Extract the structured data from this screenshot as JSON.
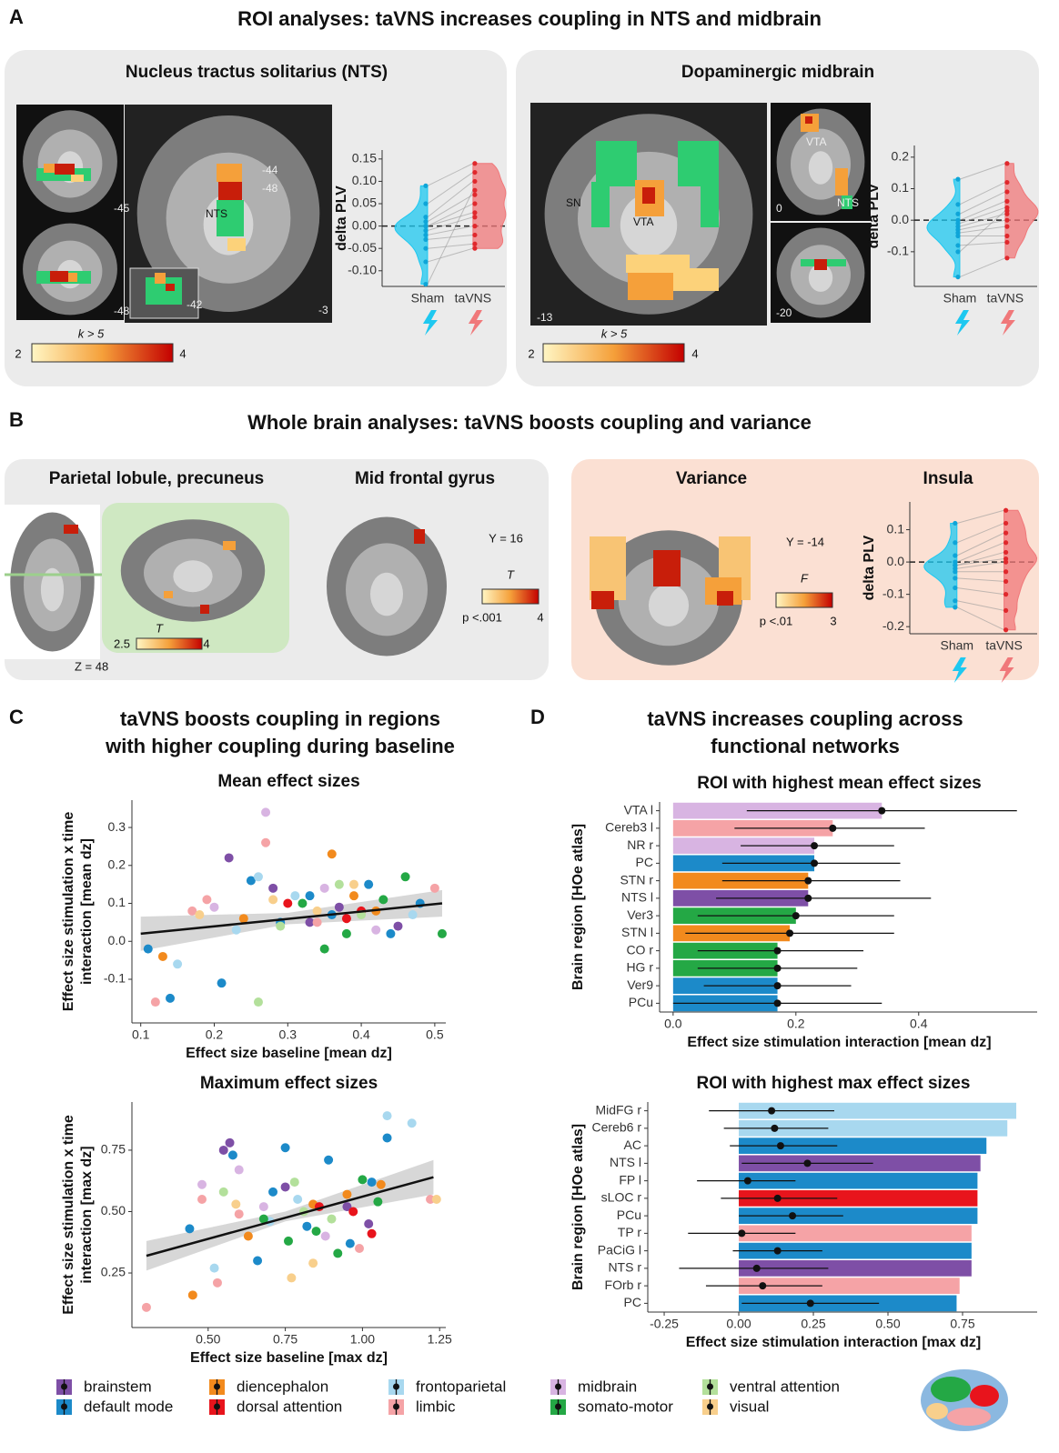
{
  "figure": {
    "A": {
      "label": "A",
      "title": "ROI analyses: taVNS increases coupling in NTS and midbrain",
      "nts": {
        "title": "Nucleus tractus solitarius (NTS)",
        "image_labels": [
          "-45",
          "-44",
          "-48",
          "NTS",
          "-48",
          "-42",
          "-3"
        ],
        "colorbar": {
          "label": "k > 5",
          "min": "2",
          "max": "4"
        }
      },
      "midbrain": {
        "title": "Dopaminergic midbrain",
        "image_labels": [
          "SN",
          "VTA",
          "-13",
          "VTA",
          "NTS",
          "0",
          "-20"
        ],
        "colorbar": {
          "label": "k > 5",
          "min": "2",
          "max": "4"
        }
      }
    },
    "B": {
      "label": "B",
      "title": "Whole brain analyses: taVNS boosts coupling and variance",
      "coupling": {
        "titles": [
          "Parietal lobule, precuneus",
          "Mid frontal gyrus"
        ],
        "image_labels": [
          "Z = 48",
          "Y = 16"
        ],
        "colorbar": {
          "label": "T",
          "min": "p <.001",
          "max": "4"
        },
        "inset_colorbar": {
          "label": "T",
          "min": "2.5",
          "max": "4"
        }
      },
      "variance": {
        "titles": [
          "Variance",
          "Insula"
        ],
        "image_labels": [
          "Y = -14"
        ],
        "colorbar": {
          "label": "F",
          "min": "p <.01",
          "max": "3"
        }
      }
    },
    "C": {
      "label": "C",
      "title": [
        "taVNS  boosts coupling in regions",
        "with higher coupling during baseline"
      ]
    },
    "D": {
      "label": "D",
      "title": [
        "taVNS increases coupling across",
        "functional networks"
      ]
    }
  },
  "chart_data": [
    {
      "type": "violin",
      "ylabel": "delta PLV",
      "categories": [
        "Sham",
        "taVNS"
      ],
      "groups": [
        {
          "color": "#1ec8f0",
          "values": [
            0.09,
            0.05,
            0.02,
            0.01,
            0.0,
            0.0,
            -0.01,
            -0.02,
            -0.03,
            -0.05,
            -0.08,
            -0.13
          ]
        },
        {
          "color": "#f0787a",
          "values": [
            0.14,
            0.12,
            0.1,
            0.07,
            0.05,
            0.03,
            0.02,
            0.0,
            -0.02,
            -0.04,
            -0.05,
            0.08
          ]
        }
      ],
      "ylim": [
        -0.135,
        0.17
      ],
      "yticks": [
        0.15,
        {
          "value": 0.1,
          "label": "0.10"
        },
        0.05,
        {
          "value": 0,
          "label": "0.00"
        },
        -0.05,
        {
          "value": -0.1,
          "label": "-0.10"
        }
      ],
      "reference_line": 0
    },
    {
      "type": "violin",
      "ylabel": "delta PLV",
      "categories": [
        "Sham",
        "taVNS"
      ],
      "groups": [
        {
          "color": "#1ec8f0",
          "values": [
            0.13,
            0.05,
            0.02,
            0.0,
            -0.01,
            -0.02,
            -0.03,
            -0.04,
            -0.05,
            -0.08,
            -0.1,
            -0.18
          ]
        },
        {
          "color": "#f0787a",
          "values": [
            0.18,
            0.12,
            0.09,
            0.06,
            0.04,
            0.02,
            0.0,
            -0.02,
            -0.05,
            -0.07,
            0.03,
            -0.12
          ]
        }
      ],
      "ylim": [
        -0.21,
        0.237
      ],
      "yticks": [
        0.2,
        0.1,
        {
          "value": 0,
          "label": "0.0"
        },
        -0.1
      ],
      "reference_line": 0
    },
    {
      "type": "violin",
      "ylabel": "delta PLV",
      "categories": [
        "Sham",
        "taVNS"
      ],
      "groups": [
        {
          "color": "#1ec8f0",
          "values": [
            0.12,
            0.06,
            0.02,
            0.0,
            -0.01,
            -0.01,
            -0.02,
            -0.03,
            -0.05,
            -0.08,
            -0.12,
            -0.14
          ]
        },
        {
          "color": "#f0787a",
          "values": [
            0.16,
            0.12,
            0.09,
            0.06,
            0.03,
            0.01,
            0.0,
            -0.03,
            -0.06,
            -0.1,
            -0.15,
            -0.21
          ]
        }
      ],
      "ylim": [
        -0.222,
        0.186
      ],
      "yticks": [
        0.1,
        {
          "value": 0,
          "label": "0.0"
        },
        -0.1,
        -0.2
      ],
      "reference_line": 0
    },
    {
      "type": "scatter",
      "panels": [
        {
          "title": "Mean effect sizes",
          "xlabel": "Effect size baseline [mean dz]",
          "ylabel": [
            "Effect size stimulation x time",
            "interaction [mean dz]"
          ],
          "xlim": [
            0.088,
            0.515
          ],
          "ylim": [
            -0.215,
            0.372
          ],
          "xticks": [
            0.1,
            0.2,
            0.3,
            0.4,
            0.5
          ],
          "yticks": [
            -0.1,
            {
              "value": 0,
              "label": "0.0"
            },
            0.1,
            0.2,
            0.3
          ],
          "fit": {
            "x": [
              0.1,
              0.51
            ],
            "values": [
              0.02,
              0.1
            ]
          },
          "band": {
            "x": [
              0.1,
              0.3,
              0.51
            ],
            "low": [
              -0.025,
              0.045,
              0.065
            ],
            "high": [
              0.065,
              0.075,
              0.135
            ]
          }
        },
        {
          "title": "Maximum effect sizes",
          "xlabel": "Effect size baseline [max dz]",
          "ylabel": [
            "Effect size stimulation x time",
            "interaction [max dz]"
          ],
          "xlim": [
            0.253,
            1.27
          ],
          "ylim": [
            0.028,
            0.946
          ],
          "xticks": [
            {
              "value": 0.5,
              "label": "0.50"
            },
            0.75,
            {
              "value": 1,
              "label": "1.00"
            },
            1.25
          ],
          "yticks": [
            0.25,
            {
              "value": 0.5,
              "label": "0.50"
            },
            0.75
          ],
          "fit": {
            "x": [
              0.3,
              1.23
            ],
            "values": [
              0.32,
              0.64
            ]
          },
          "band": {
            "x": [
              0.3,
              0.75,
              1.23
            ],
            "low": [
              0.26,
              0.46,
              0.57
            ],
            "high": [
              0.38,
              0.5,
              0.71
            ]
          }
        }
      ],
      "series": [
        {
          "name": "brainstem",
          "color": "#7e4fa6",
          "panels": [
            {
              "x": [
                0.22,
                0.28,
                0.33,
                0.37,
                0.45
              ],
              "values": [
                0.22,
                0.14,
                0.05,
                0.09,
                0.04
              ]
            },
            {
              "x": [
                0.55,
                0.57,
                0.95,
                1.02,
                0.75
              ],
              "values": [
                0.75,
                0.78,
                0.52,
                0.45,
                0.6
              ]
            }
          ]
        },
        {
          "name": "default mode",
          "color": "#1c8ac9",
          "panels": [
            {
              "x": [
                0.11,
                0.14,
                0.21,
                0.25,
                0.29,
                0.33,
                0.36,
                0.41,
                0.44,
                0.48
              ],
              "values": [
                -0.02,
                -0.15,
                -0.11,
                0.16,
                0.05,
                0.12,
                0.07,
                0.15,
                0.02,
                0.1
              ]
            },
            {
              "x": [
                0.44,
                0.58,
                0.71,
                0.75,
                0.82,
                0.89,
                0.96,
                1.03,
                1.08,
                0.66
              ],
              "values": [
                0.43,
                0.73,
                0.58,
                0.76,
                0.44,
                0.71,
                0.37,
                0.62,
                0.8,
                0.3
              ]
            }
          ]
        },
        {
          "name": "diencephalon",
          "color": "#f28a1d",
          "panels": [
            {
              "x": [
                0.13,
                0.24,
                0.36,
                0.39,
                0.42
              ],
              "values": [
                -0.04,
                0.06,
                0.23,
                0.12,
                0.08
              ]
            },
            {
              "x": [
                0.45,
                0.63,
                0.84,
                0.95,
                1.06
              ],
              "values": [
                0.16,
                0.4,
                0.53,
                0.57,
                0.61
              ]
            }
          ]
        },
        {
          "name": "dorsal attention",
          "color": "#e8141c",
          "panels": [
            {
              "x": [
                0.3,
                0.38,
                0.4
              ],
              "values": [
                0.1,
                0.06,
                0.08
              ]
            },
            {
              "x": [
                0.86,
                0.97,
                1.03
              ],
              "values": [
                0.52,
                0.5,
                0.41
              ]
            }
          ]
        },
        {
          "name": "frontoparietal",
          "color": "#a8d8ef",
          "panels": [
            {
              "x": [
                0.15,
                0.23,
                0.26,
                0.31,
                0.47
              ],
              "values": [
                -0.06,
                0.03,
                0.17,
                0.12,
                0.07
              ]
            },
            {
              "x": [
                0.52,
                0.7,
                0.79,
                1.08,
                1.16
              ],
              "values": [
                0.27,
                0.46,
                0.55,
                0.89,
                0.86
              ]
            }
          ]
        },
        {
          "name": "limbic",
          "color": "#f5a3a6",
          "panels": [
            {
              "x": [
                0.12,
                0.17,
                0.19,
                0.27,
                0.34,
                0.5
              ],
              "values": [
                -0.16,
                0.08,
                0.11,
                0.26,
                0.05,
                0.14
              ]
            },
            {
              "x": [
                0.3,
                0.48,
                0.53,
                0.6,
                0.99,
                1.22
              ],
              "values": [
                0.11,
                0.55,
                0.21,
                0.49,
                0.35,
                0.55
              ]
            }
          ]
        },
        {
          "name": "midbrain",
          "color": "#d8b4e2",
          "panels": [
            {
              "x": [
                0.2,
                0.27,
                0.35,
                0.42
              ],
              "values": [
                0.09,
                0.34,
                0.14,
                0.03
              ]
            },
            {
              "x": [
                0.48,
                0.6,
                0.68,
                0.88
              ],
              "values": [
                0.61,
                0.67,
                0.52,
                0.4
              ]
            }
          ]
        },
        {
          "name": "somato-motor",
          "color": "#24a845",
          "panels": [
            {
              "x": [
                0.32,
                0.35,
                0.38,
                0.43,
                0.46,
                0.51
              ],
              "values": [
                0.1,
                -0.02,
                0.02,
                0.11,
                0.17,
                0.02
              ]
            },
            {
              "x": [
                0.68,
                0.76,
                0.85,
                0.92,
                1.0,
                1.05
              ],
              "values": [
                0.47,
                0.38,
                0.42,
                0.33,
                0.63,
                0.54
              ]
            }
          ]
        },
        {
          "name": "ventral attention",
          "color": "#b3e09b",
          "panels": [
            {
              "x": [
                0.26,
                0.29,
                0.37,
                0.4
              ],
              "values": [
                -0.16,
                0.04,
                0.15,
                0.07
              ]
            },
            {
              "x": [
                0.55,
                0.78,
                0.81,
                0.9
              ],
              "values": [
                0.58,
                0.62,
                0.5,
                0.47
              ]
            }
          ]
        },
        {
          "name": "visual",
          "color": "#f8cf8c",
          "panels": [
            {
              "x": [
                0.18,
                0.28,
                0.34,
                0.39
              ],
              "values": [
                0.07,
                0.11,
                0.08,
                0.15
              ]
            },
            {
              "x": [
                0.59,
                0.77,
                0.84,
                1.24
              ],
              "values": [
                0.53,
                0.23,
                0.29,
                0.55
              ]
            }
          ]
        }
      ]
    },
    {
      "type": "bar",
      "title": "ROI with highest mean effect sizes",
      "xlabel": "Effect size stimulation interaction [mean dz]",
      "ylabel": "Brain region [HOe atlas]",
      "categories": [
        "VTA l",
        "Cereb3 l",
        "NR r",
        "PC",
        "STN r",
        "NTS l",
        "Ver3",
        "STN l",
        "CO r",
        "HG r",
        "Ver9",
        "PCu"
      ],
      "values": [
        0.34,
        0.26,
        0.23,
        0.23,
        0.22,
        0.22,
        0.2,
        0.19,
        0.17,
        0.17,
        0.17,
        0.17
      ],
      "points": [
        0.34,
        0.26,
        0.23,
        0.23,
        0.22,
        0.22,
        0.2,
        0.19,
        0.17,
        0.17,
        0.17,
        0.17
      ],
      "ci_low": [
        0.12,
        0.1,
        0.11,
        0.08,
        0.08,
        0.07,
        0.04,
        0.02,
        0.04,
        0.04,
        0.05,
        0.0
      ],
      "ci_high": [
        0.56,
        0.41,
        0.36,
        0.37,
        0.37,
        0.42,
        0.36,
        0.36,
        0.31,
        0.3,
        0.29,
        0.34
      ],
      "colors": [
        "#d8b4e2",
        "#f5a3a6",
        "#d8b4e2",
        "#1c8ac9",
        "#f28a1d",
        "#7e4fa6",
        "#24a845",
        "#f28a1d",
        "#24a845",
        "#24a845",
        "#1c8ac9",
        "#1c8ac9"
      ],
      "xlim": [
        -0.022,
        0.593
      ],
      "xticks": [
        {
          "value": 0,
          "label": "0.0"
        },
        0.2,
        0.4
      ]
    },
    {
      "type": "bar",
      "title": "ROI with highest max effect sizes",
      "xlabel": "Effect size stimulation interaction [max dz]",
      "ylabel": "Brain region [HOe atlas]",
      "categories": [
        "MidFG r",
        "Cereb6 r",
        "AC",
        "NTS l",
        "FP l",
        "sLOC r",
        "PCu",
        "TP r",
        "PaCiG l",
        "NTS r",
        "FOrb r",
        "PC"
      ],
      "values": [
        0.93,
        0.9,
        0.83,
        0.81,
        0.8,
        0.8,
        0.8,
        0.78,
        0.78,
        0.78,
        0.74,
        0.73
      ],
      "points": [
        0.11,
        0.12,
        0.14,
        0.23,
        0.03,
        0.13,
        0.18,
        0.01,
        0.13,
        0.06,
        0.08,
        0.24
      ],
      "ci_low": [
        -0.1,
        -0.05,
        -0.03,
        0.01,
        -0.14,
        -0.06,
        0.0,
        -0.17,
        -0.02,
        -0.2,
        -0.11,
        0.01
      ],
      "ci_high": [
        0.32,
        0.3,
        0.33,
        0.45,
        0.19,
        0.33,
        0.35,
        0.19,
        0.28,
        0.3,
        0.28,
        0.47
      ],
      "colors": [
        "#a8d8ef",
        "#a8d8ef",
        "#1c8ac9",
        "#7e4fa6",
        "#1c8ac9",
        "#e8141c",
        "#1c8ac9",
        "#f5a3a6",
        "#1c8ac9",
        "#7e4fa6",
        "#f5a3a6",
        "#1c8ac9"
      ],
      "xlim": [
        -0.305,
        1.0
      ],
      "xticks": [
        -0.25,
        {
          "value": 0,
          "label": "0.00"
        },
        0.25,
        {
          "value": 0.5,
          "label": "0.50"
        },
        0.75
      ]
    }
  ]
}
